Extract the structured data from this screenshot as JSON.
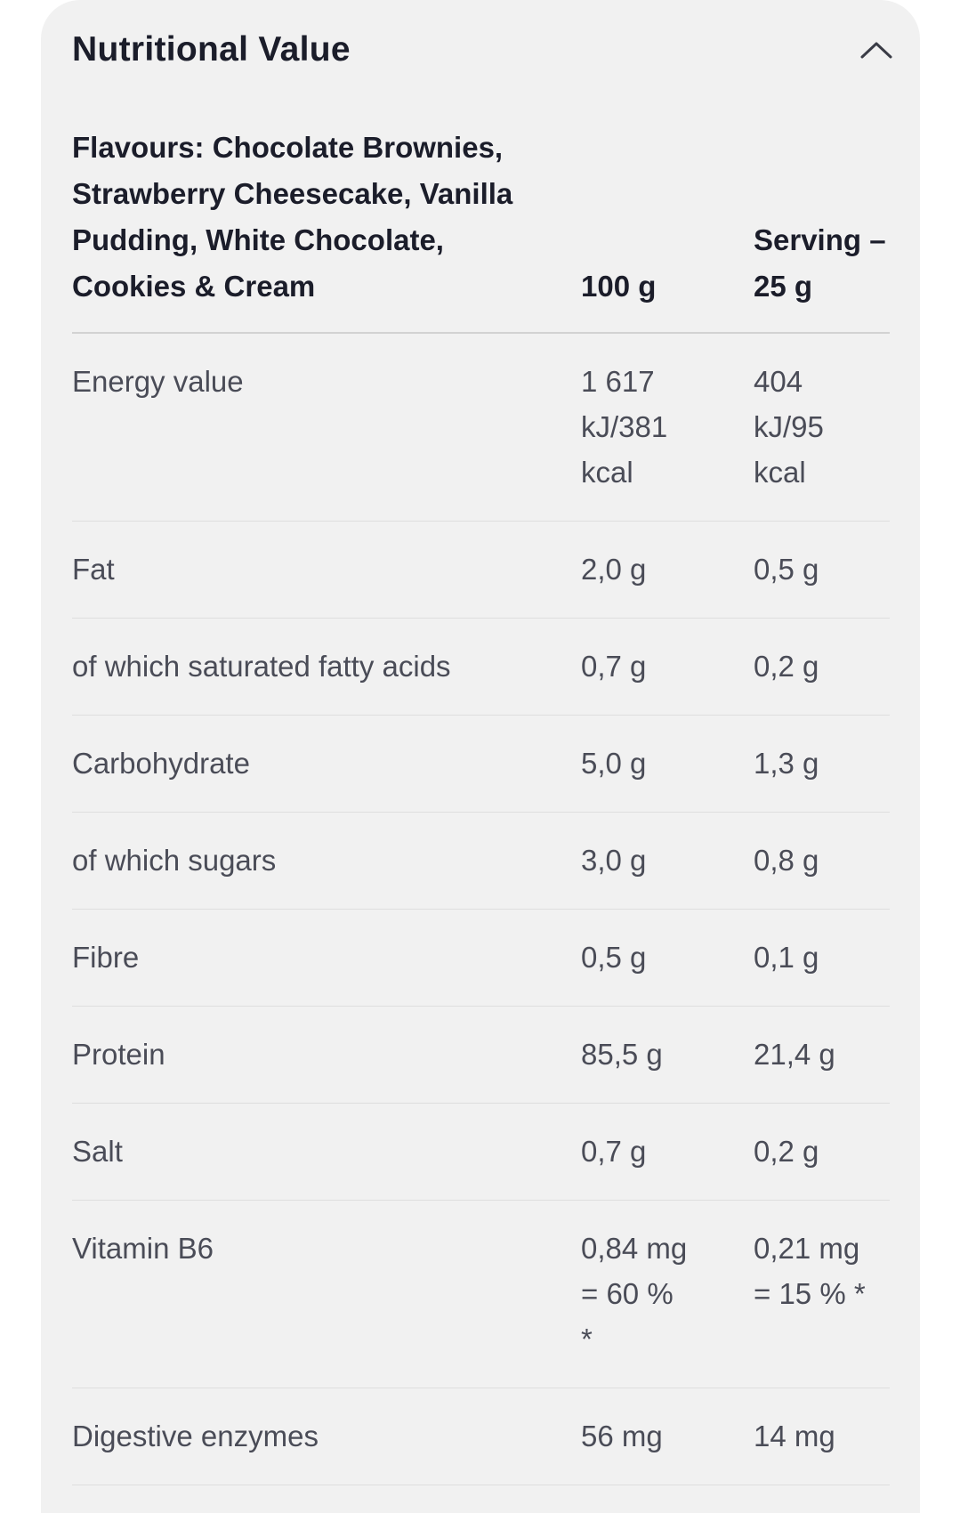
{
  "panel": {
    "title": "Nutritional Value",
    "toggle_icon": "chevron-up-icon"
  },
  "table": {
    "header": {
      "name": "Flavours: Chocolate Brownies, Strawberry Cheesecake, Vanilla Pudding, White Chocolate, Cookies & Cream",
      "per_100g": "100 g",
      "per_serving": "Serving – 25 g"
    },
    "rows": [
      {
        "name": "Energy value",
        "per_100g": "1 617 kJ/381 kcal",
        "per_serving": "404 kJ/95 kcal"
      },
      {
        "name": "Fat",
        "per_100g": "2,0 g",
        "per_serving": "0,5 g"
      },
      {
        "name": "of which saturated fatty acids",
        "per_100g": "0,7 g",
        "per_serving": "0,2 g"
      },
      {
        "name": "Carbohydrate",
        "per_100g": "5,0 g",
        "per_serving": "1,3 g"
      },
      {
        "name": "of which sugars",
        "per_100g": "3,0 g",
        "per_serving": "0,8 g"
      },
      {
        "name": "Fibre",
        "per_100g": "0,5 g",
        "per_serving": "0,1 g"
      },
      {
        "name": "Protein",
        "per_100g": "85,5 g",
        "per_serving": "21,4 g"
      },
      {
        "name": "Salt",
        "per_100g": "0,7 g",
        "per_serving": "0,2 g"
      },
      {
        "name": "Vitamin B6",
        "per_100g": "0,84 mg = 60 % *",
        "per_serving": "0,21 mg = 15 % *"
      },
      {
        "name": "Digestive enzymes",
        "per_100g": "56 mg",
        "per_serving": "14 mg"
      }
    ]
  }
}
